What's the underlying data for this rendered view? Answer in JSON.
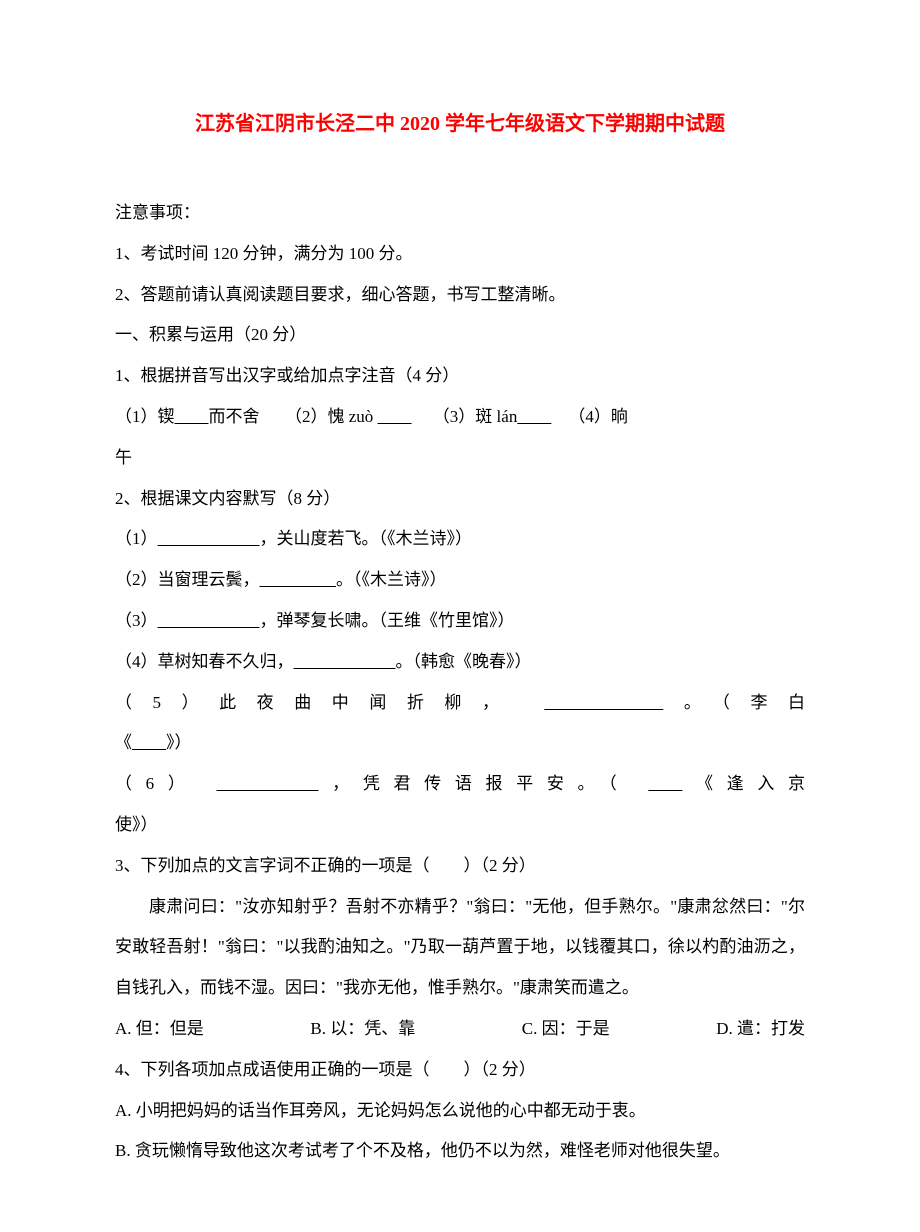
{
  "title": "江苏省江阴市长泾二中 2020 学年七年级语文下学期期中试题",
  "notice_heading": "注意事项：",
  "notice_1": "1、考试时间 120 分钟，满分为 100 分。",
  "notice_2": "2、答题前请认真阅读题目要求，细心答题，书写工整清晰。",
  "section_1": "一、积累与运用（20 分）",
  "q1": {
    "stem": "1、根据拼音写出汉字或给加点字注音（4 分）",
    "p1_label": "（1）锲",
    "p1_suffix": "而不舍",
    "p2_label": "（2）愧 zuò",
    "p3_label": "（3）斑 lán",
    "p4_label": "（4）晌",
    "p4_line2": "午"
  },
  "q2": {
    "stem": "2、根据课文内容默写（8 分）",
    "p1_prefix": "（1）",
    "p1_suffix": "，关山度若飞。（《木兰诗》）",
    "p2_prefix": "（2）当窗理云鬓，",
    "p2_suffix": "。（《木兰诗》）",
    "p3_prefix": "（3）",
    "p3_suffix": "，弹琴复长啸。（王维《竹里馆》）",
    "p4_prefix": "（4）草树知春不久归，",
    "p4_suffix": "。（韩愈《晚春》）",
    "p5_prefix": "（5）此夜曲中闻折柳，",
    "p5_suffix_a": "。（李白",
    "p5_line2_prefix": "《",
    "p5_line2_suffix": "》）",
    "p6_prefix": "（6）",
    "p6_mid": "，凭君传语报平安。（",
    "p6_suffix": "《逢入京",
    "p6_line2": "使》）"
  },
  "q3": {
    "stem": "3、下列加点的文言字词不正确的一项是（　　）（2 分）",
    "passage": "康肃问曰：\"汝亦知射乎？吾射不亦精乎？\"翁曰：\"无他，但手熟尔。\"康肃忿然曰：\"尔安敢轻吾射！\"翁曰：\"以我酌油知之。\"乃取一葫芦置于地，以钱覆其口，徐以杓酌油沥之，自钱孔入，而钱不湿。因曰：\"我亦无他，惟手熟尔。\"康肃笑而遣之。",
    "opt_a": "A. 但：但是",
    "opt_b": "B. 以：凭、靠",
    "opt_c": "C. 因：于是",
    "opt_d": "D. 遣：打发"
  },
  "q4": {
    "stem": "4、下列各项加点成语使用正确的一项是（　　）（2 分）",
    "opt_a": "A. 小明把妈妈的话当作耳旁风，无论妈妈怎么说他的心中都无动于衷。",
    "opt_b": "B. 贪玩懒惰导致他这次考试考了个不及格，他仍不以为然，难怪老师对他很失望。"
  },
  "style": {
    "blank_short": "        ",
    "blank_mid": "                  ",
    "blank_long": "                        ",
    "blank_xlong": "                            "
  }
}
